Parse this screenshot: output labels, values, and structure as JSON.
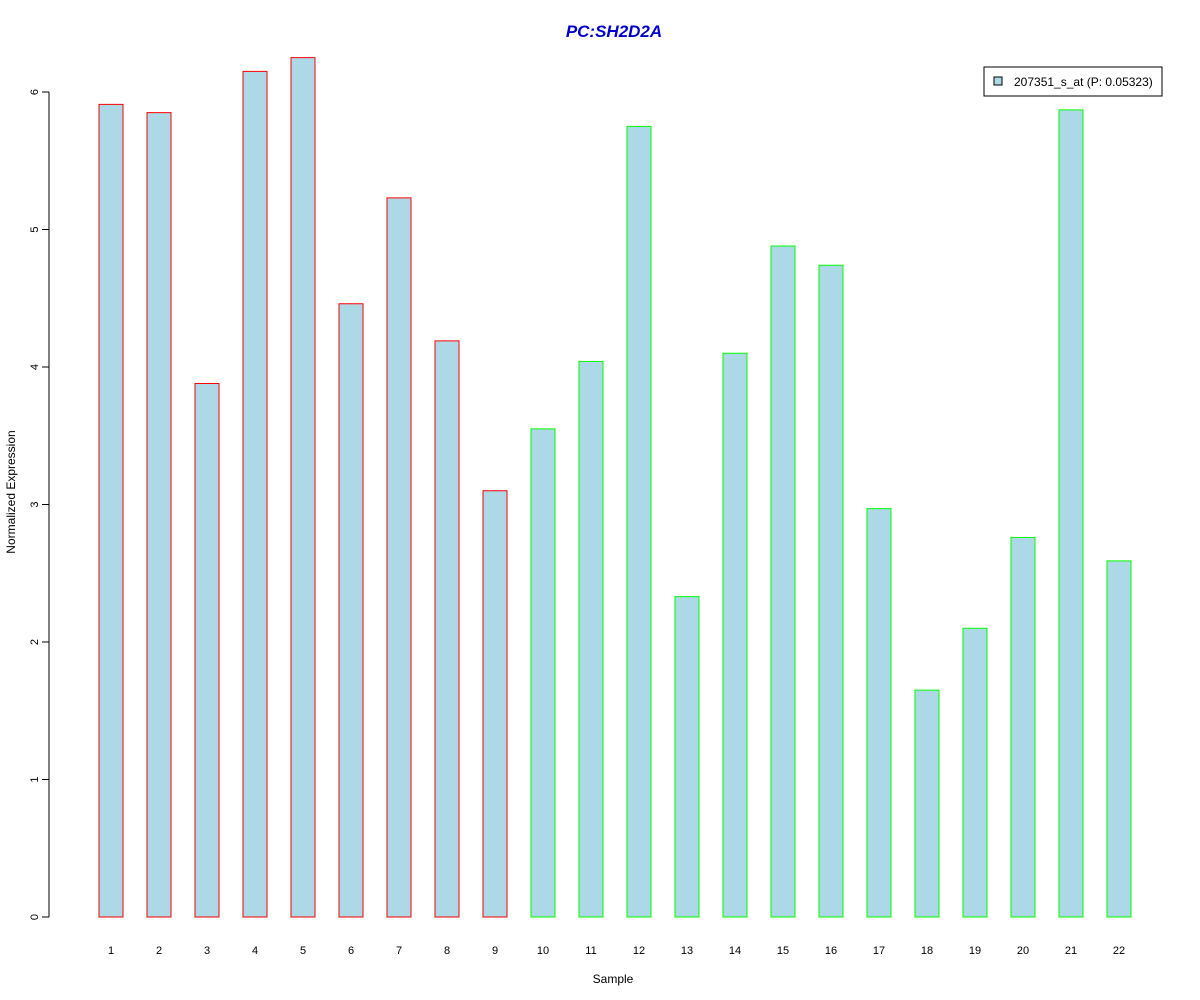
{
  "chart_data": {
    "type": "bar",
    "title": "PC:SH2D2A",
    "xlabel": "Sample",
    "ylabel": "Normalized Expression",
    "categories": [
      "1",
      "2",
      "3",
      "4",
      "5",
      "6",
      "7",
      "8",
      "9",
      "10",
      "11",
      "12",
      "13",
      "14",
      "15",
      "16",
      "17",
      "18",
      "19",
      "20",
      "21",
      "22"
    ],
    "series": [
      {
        "name": "207351_s_at (P: 0.05323)",
        "values": [
          5.91,
          5.85,
          3.88,
          6.15,
          6.25,
          4.46,
          5.23,
          4.19,
          3.1,
          3.55,
          4.04,
          5.75,
          2.33,
          4.1,
          4.88,
          4.74,
          2.97,
          1.65,
          2.1,
          2.76,
          5.87,
          2.59
        ]
      }
    ],
    "ylim": [
      0,
      6.3
    ],
    "yticks": [
      "0",
      "1",
      "2",
      "3",
      "4",
      "5",
      "6"
    ],
    "grid": false,
    "legend_position": "top-right",
    "groups": [
      {
        "samples": [
          "1",
          "2",
          "3",
          "4",
          "5",
          "6",
          "7",
          "8",
          "9"
        ],
        "border_color": "#ff0000"
      },
      {
        "samples": [
          "10",
          "11",
          "12",
          "13",
          "14",
          "15",
          "16",
          "17",
          "18",
          "19",
          "20",
          "21",
          "22"
        ],
        "border_color": "#00ff00"
      }
    ],
    "colors": {
      "bar_fill": "#add8e6",
      "title": "#0000cc",
      "group_1_border": "#ff0000",
      "group_2_border": "#00ff00"
    }
  }
}
